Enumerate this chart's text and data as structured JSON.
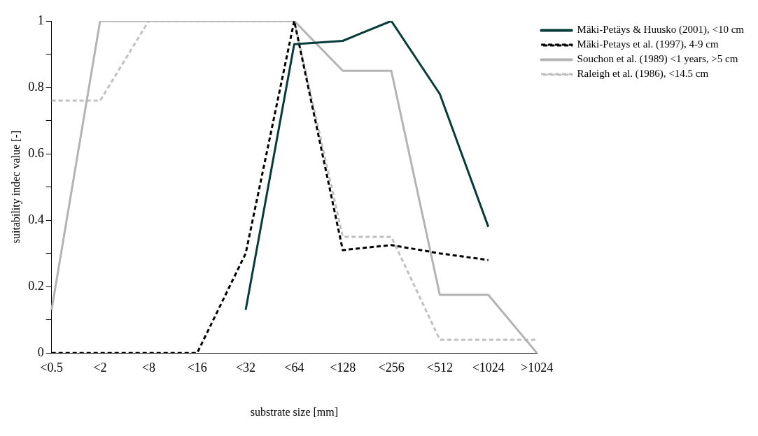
{
  "chart_data": {
    "type": "line",
    "xlabel": "substrate size [mm]",
    "ylabel": "suitability indec value [-]",
    "categories": [
      "<0.5",
      "<2",
      "<8",
      "<16",
      "<32",
      "<64",
      "<128",
      "<256",
      "<512",
      "<1024",
      ">1024"
    ],
    "ylim": [
      0,
      1
    ],
    "yticks": [
      0,
      {
        "value": 0.1,
        "label": null
      },
      0.2,
      {
        "value": 0.3,
        "label": null
      },
      0.4,
      {
        "value": 0.5,
        "label": null
      },
      0.6,
      {
        "value": 0.7,
        "label": null
      },
      0.8,
      {
        "value": 0.9,
        "label": null
      },
      1
    ],
    "grid": false,
    "legend": "top right",
    "marker": "none",
    "series": [
      {
        "name": "Mäki-Petäys & Huusko (2001), <10 cm",
        "color": "#073b3a",
        "line_style": "solid",
        "values": [
          null,
          null,
          null,
          null,
          0.13,
          0.93,
          0.94,
          1.0,
          0.78,
          0.38,
          null
        ]
      },
      {
        "name": "Mäki-Petays et al. (1997), 4-9 cm",
        "color": "#000000",
        "line_style": "dashed",
        "values": [
          0,
          0,
          0,
          0,
          0.3,
          1.0,
          0.31,
          0.325,
          0.3,
          0.28,
          null
        ]
      },
      {
        "name": "Souchon et al. (1989) <1 years, >5 cm",
        "color": "#b3b3b3",
        "line_style": "solid",
        "values": [
          0.13,
          1,
          1,
          1,
          1,
          1,
          0.85,
          0.85,
          0.175,
          0.175,
          0
        ]
      },
      {
        "name": "Raleigh et al. (1986), <14.5 cm",
        "color": "#c0c0c0",
        "line_style": "dashed",
        "values": [
          0.76,
          0.76,
          1,
          1,
          1,
          1,
          0.35,
          0.35,
          0.04,
          0.04,
          0.04
        ]
      }
    ]
  }
}
